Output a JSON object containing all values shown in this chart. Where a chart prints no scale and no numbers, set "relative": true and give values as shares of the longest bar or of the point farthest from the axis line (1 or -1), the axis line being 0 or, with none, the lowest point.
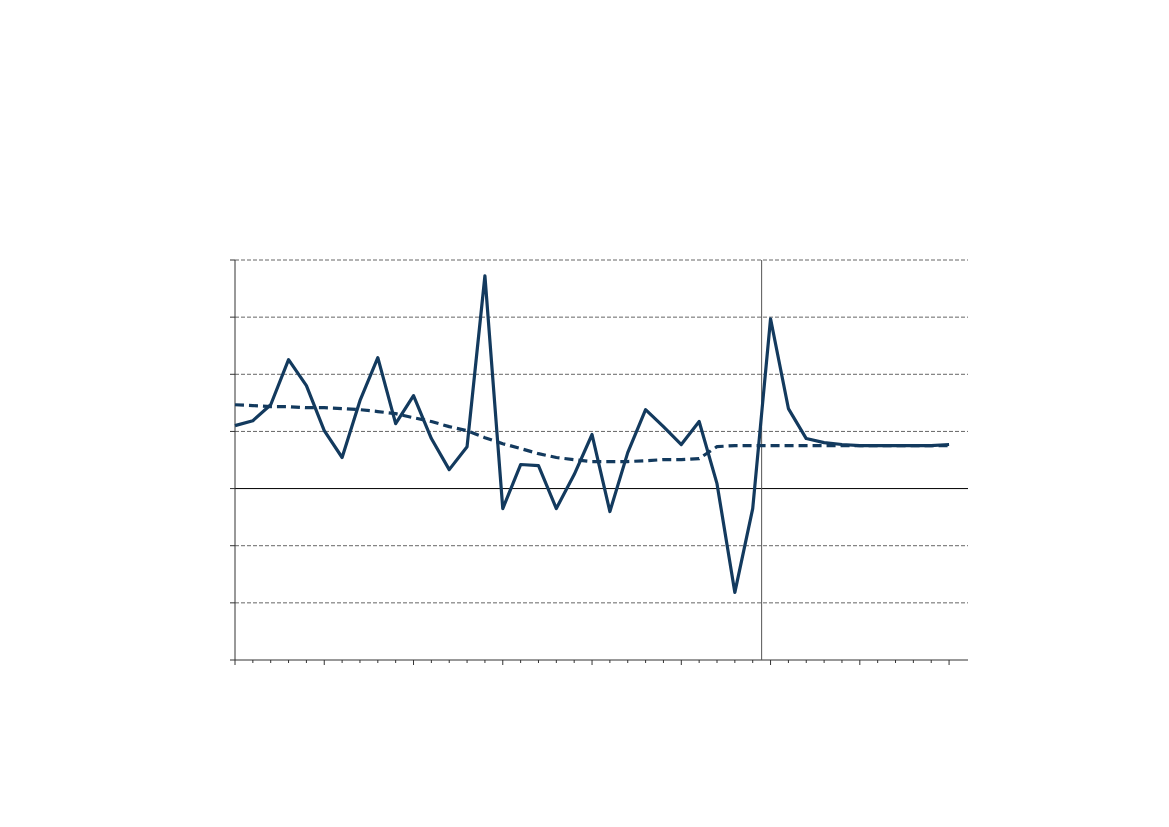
{
  "chart_data": {
    "type": "line",
    "relative": true,
    "grid": "y",
    "categories": [
      null,
      null,
      null,
      null,
      null,
      null,
      null,
      null,
      null,
      null,
      null,
      null,
      null,
      null,
      null,
      null,
      null,
      null,
      null,
      null,
      null,
      null,
      null,
      null,
      null,
      null,
      null,
      null,
      null,
      null,
      null,
      null,
      null,
      null,
      null,
      null,
      null,
      null,
      null,
      null,
      null
    ],
    "series": [
      {
        "color": "#133a5e",
        "line_style": "solid",
        "values": [
          0.296,
          0.319,
          0.394,
          0.606,
          0.484,
          0.272,
          0.146,
          0.413,
          0.615,
          0.305,
          0.437,
          0.235,
          0.089,
          0.197,
          1.0,
          -0.094,
          0.113,
          0.108,
          -0.094,
          0.066,
          0.254,
          -0.108,
          0.169,
          0.371,
          0.291,
          0.207,
          0.315,
          0.023,
          -0.488,
          -0.094,
          0.798,
          0.376,
          0.235,
          0.216,
          0.207,
          0.202,
          0.202,
          0.202,
          0.202,
          0.202,
          0.207
        ]
      },
      {
        "color": "#133a5e",
        "line_style": "dashed",
        "values": [
          0.394,
          0.39,
          0.385,
          0.385,
          0.38,
          0.38,
          0.376,
          0.371,
          0.362,
          0.352,
          0.333,
          0.315,
          0.291,
          0.272,
          0.239,
          0.211,
          0.188,
          0.164,
          0.146,
          0.136,
          0.127,
          0.127,
          0.127,
          0.131,
          0.136,
          0.136,
          0.141,
          0.197,
          0.202,
          0.202,
          0.202,
          0.202,
          0.202,
          0.202,
          0.202,
          0.202,
          0.202,
          0.202,
          0.202,
          0.202,
          0.202
        ]
      }
    ]
  }
}
